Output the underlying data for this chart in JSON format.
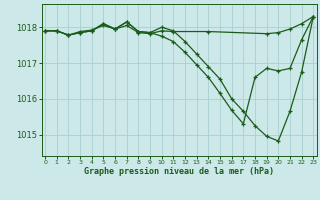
{
  "xlabel": "Graphe pression niveau de la mer (hPa)",
  "bg_color": "#cce8e8",
  "grid_color": "#aacece",
  "line_color": "#1a5c1a",
  "yticks": [
    1015,
    1016,
    1017,
    1018
  ],
  "xticks": [
    0,
    1,
    2,
    3,
    4,
    5,
    6,
    7,
    8,
    9,
    10,
    11,
    12,
    13,
    14,
    15,
    16,
    17,
    18,
    19,
    20,
    21,
    22,
    23
  ],
  "ylim": [
    1014.4,
    1018.65
  ],
  "xlim": [
    -0.3,
    23.3
  ],
  "line1": {
    "x": [
      0,
      1,
      2,
      3,
      4,
      5,
      6,
      7,
      8,
      9,
      10,
      11,
      14,
      19,
      20,
      21,
      22,
      23
    ],
    "y": [
      1017.9,
      1017.9,
      1017.78,
      1017.88,
      1017.92,
      1018.05,
      1017.95,
      1018.05,
      1017.85,
      1017.82,
      1017.9,
      1017.88,
      1017.88,
      1017.82,
      1017.85,
      1017.95,
      1018.1,
      1018.3
    ]
  },
  "line2": {
    "x": [
      0,
      1,
      2,
      3,
      4,
      5,
      6,
      7,
      8,
      9,
      10,
      11,
      12,
      13,
      14,
      15,
      16,
      17,
      18,
      19,
      20,
      21,
      22,
      23
    ],
    "y": [
      1017.9,
      1017.9,
      1017.78,
      1017.85,
      1017.9,
      1018.1,
      1017.95,
      1018.15,
      1017.88,
      1017.85,
      1018.0,
      1017.9,
      1017.6,
      1017.25,
      1016.9,
      1016.55,
      1016.0,
      1015.65,
      1015.25,
      1014.95,
      1014.82,
      1015.65,
      1016.75,
      1018.3
    ]
  },
  "line3": {
    "x": [
      0,
      1,
      2,
      3,
      4,
      5,
      6,
      7,
      8,
      9,
      10,
      11,
      12,
      13,
      14,
      15,
      16,
      17,
      18,
      19,
      20,
      21,
      22,
      23
    ],
    "y": [
      1017.9,
      1017.9,
      1017.78,
      1017.85,
      1017.9,
      1018.1,
      1017.95,
      1018.15,
      1017.88,
      1017.85,
      1017.75,
      1017.6,
      1017.3,
      1016.95,
      1016.6,
      1016.15,
      1015.68,
      1015.3,
      1016.6,
      1016.85,
      1016.78,
      1016.85,
      1017.65,
      1018.3
    ]
  }
}
